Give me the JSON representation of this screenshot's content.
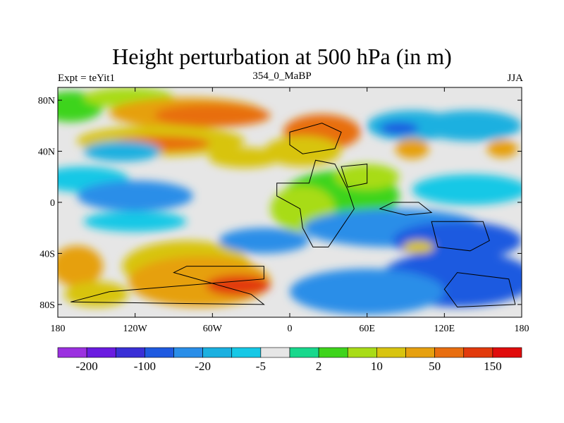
{
  "chart_data": {
    "type": "heatmap",
    "title": "Height perturbation at 500 hPa (in m)",
    "left_string": "Expt = teYit1",
    "center_string": "354_0_MaBP",
    "right_string": "JJA",
    "x_ticks": [
      "180",
      "120W",
      "60W",
      "0",
      "60E",
      "120E",
      "180"
    ],
    "y_ticks": [
      "80N",
      "40N",
      "0",
      "40S",
      "80S"
    ],
    "xlim": [
      -180,
      180
    ],
    "ylim": [
      -90,
      90
    ],
    "colorbar": {
      "colors": [
        "#9b30e0",
        "#6a1be0",
        "#3a2fd6",
        "#1f5ae0",
        "#2a8ee8",
        "#1bb0e0",
        "#16c8e6",
        "#e6e6e6",
        "#18d88c",
        "#3ed41c",
        "#a8dc18",
        "#d8c410",
        "#e6a010",
        "#e86e10",
        "#e23a0c",
        "#e00c0c"
      ],
      "labels": [
        "-200",
        "-100",
        "-20",
        "-5",
        "2",
        "10",
        "50",
        "150"
      ]
    },
    "fields": {
      "background_level": 7,
      "blobs": [
        {
          "lon": -170,
          "lat": 75,
          "rx": 25,
          "ry": 12,
          "level": 9
        },
        {
          "lon": -125,
          "lat": 82,
          "rx": 35,
          "ry": 8,
          "level": 10
        },
        {
          "lon": -80,
          "lat": 70,
          "rx": 60,
          "ry": 12,
          "level": 12
        },
        {
          "lon": -60,
          "lat": 68,
          "rx": 45,
          "ry": 9,
          "level": 13
        },
        {
          "lon": -100,
          "lat": 48,
          "rx": 65,
          "ry": 12,
          "level": 11
        },
        {
          "lon": -100,
          "lat": 46,
          "rx": 38,
          "ry": 6,
          "level": 13
        },
        {
          "lon": -35,
          "lat": 35,
          "rx": 28,
          "ry": 8,
          "level": 11
        },
        {
          "lon": 25,
          "lat": 55,
          "rx": 30,
          "ry": 14,
          "level": 13
        },
        {
          "lon": 10,
          "lat": 40,
          "rx": 30,
          "ry": 12,
          "level": 11
        },
        {
          "lon": 95,
          "lat": 60,
          "rx": 35,
          "ry": 12,
          "level": 5
        },
        {
          "lon": 85,
          "lat": 58,
          "rx": 15,
          "ry": 5,
          "level": 3
        },
        {
          "lon": 140,
          "lat": 60,
          "rx": 40,
          "ry": 12,
          "level": 5
        },
        {
          "lon": 95,
          "lat": 42,
          "rx": 13,
          "ry": 8,
          "level": 12
        },
        {
          "lon": 165,
          "lat": 42,
          "rx": 12,
          "ry": 7,
          "level": 12
        },
        {
          "lon": -130,
          "lat": 40,
          "rx": 30,
          "ry": 8,
          "level": 5
        },
        {
          "lon": -160,
          "lat": 18,
          "rx": 35,
          "ry": 10,
          "level": 6
        },
        {
          "lon": -120,
          "lat": 5,
          "rx": 45,
          "ry": 12,
          "level": 4
        },
        {
          "lon": -120,
          "lat": -15,
          "rx": 40,
          "ry": 8,
          "level": 6
        },
        {
          "lon": 40,
          "lat": 5,
          "rx": 45,
          "ry": 20,
          "level": 9
        },
        {
          "lon": 10,
          "lat": -5,
          "rx": 25,
          "ry": 18,
          "level": 10
        },
        {
          "lon": 60,
          "lat": 20,
          "rx": 25,
          "ry": 10,
          "level": 10
        },
        {
          "lon": 140,
          "lat": 10,
          "rx": 45,
          "ry": 12,
          "level": 6
        },
        {
          "lon": 80,
          "lat": -20,
          "rx": 70,
          "ry": 15,
          "level": 4
        },
        {
          "lon": 130,
          "lat": -30,
          "rx": 50,
          "ry": 15,
          "level": 3
        },
        {
          "lon": 100,
          "lat": -35,
          "rx": 12,
          "ry": 5,
          "level": 11
        },
        {
          "lon": 130,
          "lat": -60,
          "rx": 60,
          "ry": 22,
          "level": 3
        },
        {
          "lon": 60,
          "lat": -70,
          "rx": 60,
          "ry": 18,
          "level": 4
        },
        {
          "lon": -165,
          "lat": -50,
          "rx": 20,
          "ry": 16,
          "level": 12
        },
        {
          "lon": -150,
          "lat": -72,
          "rx": 25,
          "ry": 10,
          "level": 11
        },
        {
          "lon": -80,
          "lat": -50,
          "rx": 50,
          "ry": 20,
          "level": 11
        },
        {
          "lon": -70,
          "lat": -62,
          "rx": 55,
          "ry": 20,
          "level": 12
        },
        {
          "lon": -40,
          "lat": -65,
          "rx": 25,
          "ry": 8,
          "level": 14
        },
        {
          "lon": -20,
          "lat": -30,
          "rx": 35,
          "ry": 10,
          "level": 4
        }
      ]
    }
  }
}
